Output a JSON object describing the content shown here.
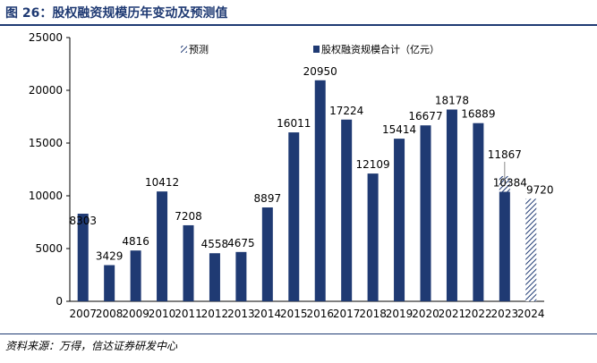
{
  "figure_title": "图 26：股权融资规模历年变动及预测值",
  "source": "资料来源：万得，信达证券研发中心",
  "colors": {
    "bar": "#1f3a73",
    "hatch": "#1f3a73",
    "title": "#1f3a73",
    "annotation_line": "#888888"
  },
  "chart_data": {
    "type": "bar",
    "categories": [
      "2007",
      "2008",
      "2009",
      "2010",
      "2011",
      "2012",
      "2013",
      "2014",
      "2015",
      "2016",
      "2017",
      "2018",
      "2019",
      "2020",
      "2021",
      "2022",
      "2023",
      "2024"
    ],
    "series": [
      {
        "name": "股权融资规模合计（亿元）",
        "values": [
          8303,
          3429,
          4816,
          10412,
          7208,
          4558,
          4675,
          8897,
          16011,
          20950,
          17224,
          12109,
          15414,
          16677,
          18178,
          16889,
          10384,
          null
        ]
      },
      {
        "name": "预测",
        "values": [
          null,
          null,
          null,
          null,
          null,
          null,
          null,
          null,
          null,
          null,
          null,
          null,
          null,
          null,
          null,
          null,
          1483,
          9720
        ]
      }
    ],
    "data_labels": [
      "8303",
      "3429",
      "4816",
      "10412",
      "7208",
      "4558",
      "4675",
      "8897",
      "16011",
      "20950",
      "17224",
      "12109",
      "15414",
      "16677",
      "18178",
      "16889",
      "10384",
      "9720"
    ],
    "annotations": [
      {
        "category": "2023",
        "text": "11867"
      }
    ],
    "ylim": [
      0,
      25000
    ],
    "yticks": [
      0,
      5000,
      10000,
      15000,
      20000,
      25000
    ],
    "ytick_labels": [
      "0",
      "5000",
      "10000",
      "15000",
      "20000",
      "25000"
    ],
    "legend": [
      "预测",
      "股权融资规模合计（亿元）"
    ],
    "legend_position": "top",
    "grid": false
  }
}
